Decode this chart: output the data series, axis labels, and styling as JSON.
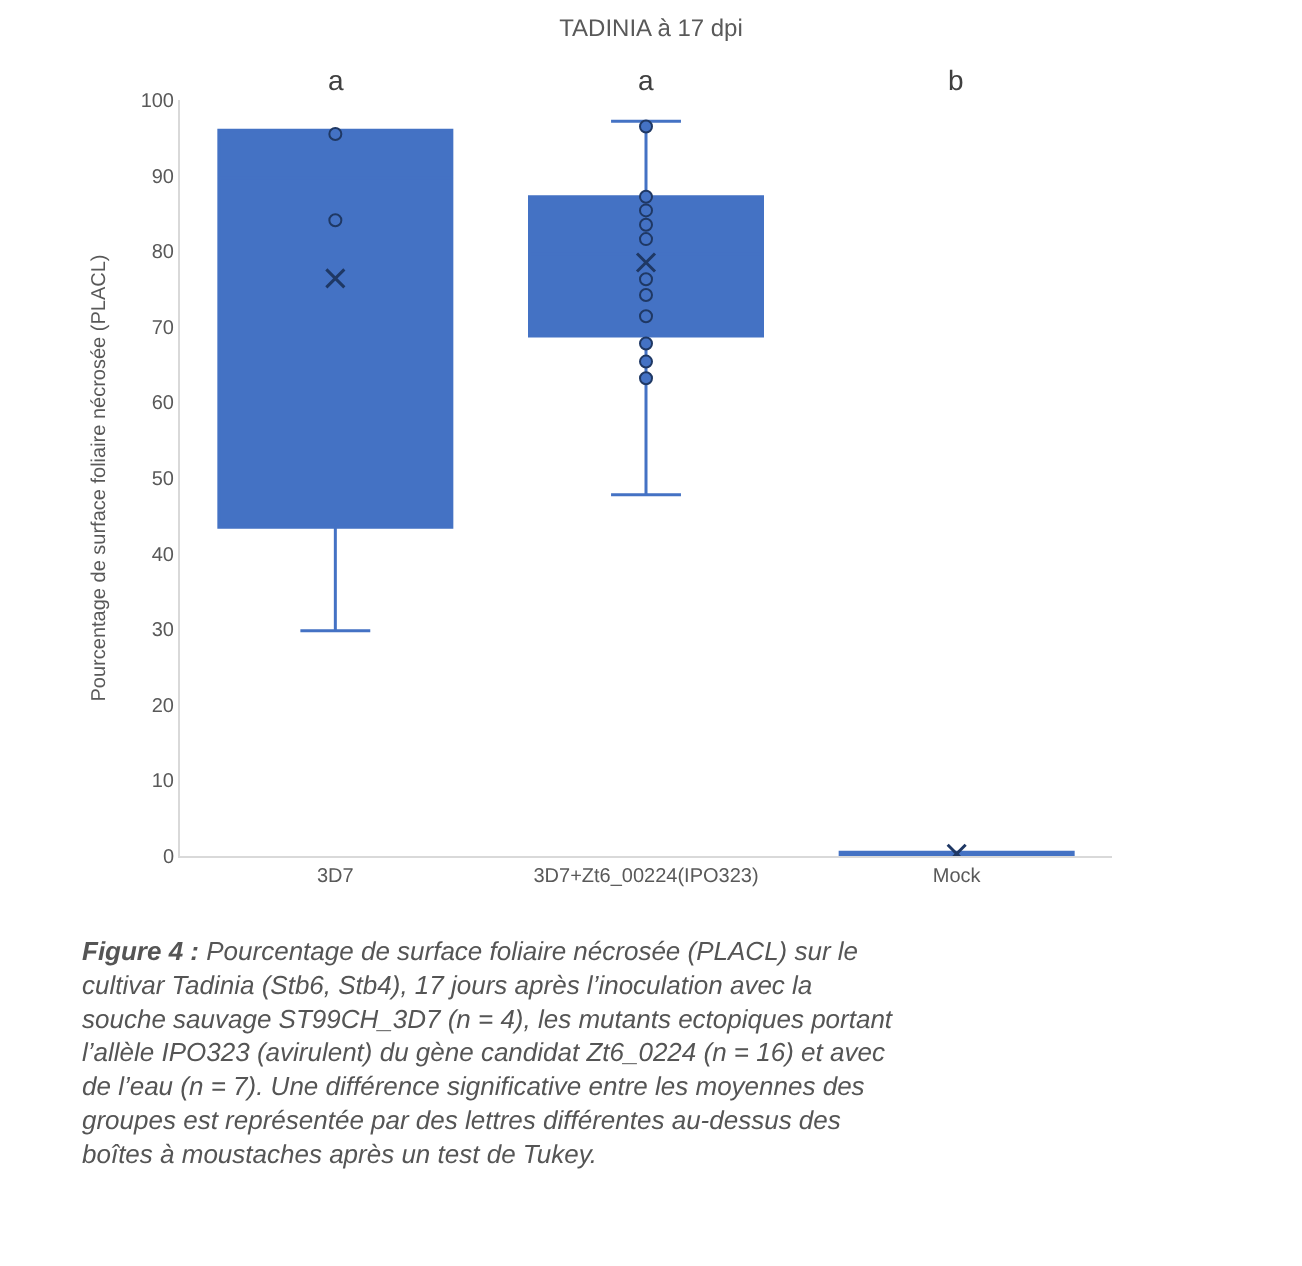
{
  "chart_data": {
    "type": "box",
    "title": "TADINIA à 17 dpi",
    "ylabel": "Pourcentage de surface foliaire nécrosée (PLACL)",
    "categories": [
      "3D7",
      "3D7+Zt6_00224(IPO323)",
      "Mock"
    ],
    "ylim": [
      0,
      100
    ],
    "yticks": [
      0,
      10,
      20,
      30,
      40,
      50,
      60,
      70,
      80,
      90,
      100
    ],
    "series": [
      {
        "color": "#4472c4",
        "boxes": [
          {
            "low": 29.8,
            "q1": 43.5,
            "median": 89.7,
            "q3": 96.0,
            "high": 96.0,
            "mean": 76.4
          },
          {
            "low": 47.8,
            "q1": 68.8,
            "median": 79.6,
            "q3": 87.2,
            "high": 97.2,
            "mean": 78.5
          },
          {
            "low": 0,
            "q1": 0,
            "median": 0,
            "q3": 0.5,
            "high": 0.5,
            "mean": 0.3
          }
        ]
      },
      {
        "type": "scatter",
        "color": "#4472c4",
        "x": [
          "3D7",
          "3D7",
          "3D7+Zt6_00224(IPO323)",
          "3D7+Zt6_00224(IPO323)",
          "3D7+Zt6_00224(IPO323)",
          "3D7+Zt6_00224(IPO323)",
          "3D7+Zt6_00224(IPO323)",
          "3D7+Zt6_00224(IPO323)",
          "3D7+Zt6_00224(IPO323)",
          "3D7+Zt6_00224(IPO323)",
          "3D7+Zt6_00224(IPO323)",
          "3D7+Zt6_00224(IPO323)",
          "3D7+Zt6_00224(IPO323)"
        ],
        "values": [
          95.5,
          84.1,
          96.5,
          87.2,
          85.4,
          83.5,
          81.6,
          76.3,
          74.2,
          71.4,
          67.8,
          65.4,
          63.2
        ]
      }
    ],
    "marker": "circle",
    "annotations": [
      "a",
      "a",
      "b",
      "Figure 4 :",
      "Pourcentage de surface foliaire nécrosée (PLACL) sur le cultivar Tadinia (Stb6, Stb4), 17 jours après l’inoculation avec la souche sauvage ST99CH_3D7 (n = 4), les mutants ectopiques portant l’allèle IPO323 (avirulent) du gène candidat Zt6_0224 (n = 16) et avec de l’eau (n = 7). Une différence significative entre les moyennes des groupes est représentée par des lettres différentes au-dessus des boîtes à moustaches après un test de Tukey."
    ]
  }
}
